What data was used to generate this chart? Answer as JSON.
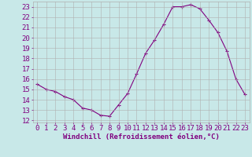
{
  "x": [
    0,
    1,
    2,
    3,
    4,
    5,
    6,
    7,
    8,
    9,
    10,
    11,
    12,
    13,
    14,
    15,
    16,
    17,
    18,
    19,
    20,
    21,
    22,
    23
  ],
  "y": [
    15.5,
    15.0,
    14.8,
    14.3,
    14.0,
    13.2,
    13.0,
    12.5,
    12.4,
    13.5,
    14.6,
    16.5,
    18.5,
    19.8,
    21.3,
    23.0,
    23.0,
    23.2,
    22.8,
    21.7,
    20.5,
    18.7,
    16.0,
    14.5
  ],
  "line_color": "#800080",
  "bg_color": "#c8e8e8",
  "grid_color": "#b0b0b0",
  "xlabel": "Windchill (Refroidissement éolien,°C)",
  "tick_color": "#800080",
  "ylim": [
    11.8,
    23.5
  ],
  "yticks": [
    12,
    13,
    14,
    15,
    16,
    17,
    18,
    19,
    20,
    21,
    22,
    23
  ],
  "xlim": [
    -0.5,
    23.5
  ],
  "xticks": [
    0,
    1,
    2,
    3,
    4,
    5,
    6,
    7,
    8,
    9,
    10,
    11,
    12,
    13,
    14,
    15,
    16,
    17,
    18,
    19,
    20,
    21,
    22,
    23
  ],
  "font_size": 6.5,
  "xlabel_fontsize": 6.5,
  "marker_size": 3
}
